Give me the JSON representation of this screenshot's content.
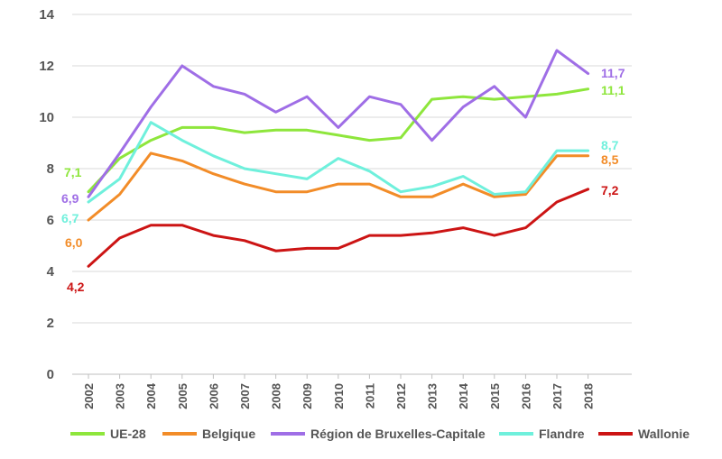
{
  "chart_data": {
    "type": "line",
    "categories": [
      "2002",
      "2003",
      "2004",
      "2005",
      "2006",
      "2007",
      "2008",
      "2009",
      "2010",
      "2011",
      "2012",
      "2013",
      "2014",
      "2015",
      "2016",
      "2017",
      "2018"
    ],
    "ylim": [
      0,
      14
    ],
    "yticks": [
      "0",
      "2",
      "4",
      "6",
      "8",
      "10",
      "12",
      "14"
    ],
    "grid": true,
    "legend_position": "bottom",
    "series": [
      {
        "name": "UE-28",
        "color": "#8ee63c",
        "values": [
          7.1,
          8.4,
          9.1,
          9.6,
          9.6,
          9.4,
          9.5,
          9.5,
          9.3,
          9.1,
          9.2,
          10.7,
          10.8,
          10.7,
          10.8,
          10.9,
          11.1
        ],
        "start_label": "7,1",
        "end_label": "11,1"
      },
      {
        "name": "Belgique",
        "color": "#f28c28",
        "values": [
          6.0,
          7.0,
          8.6,
          8.3,
          7.8,
          7.4,
          7.1,
          7.1,
          7.4,
          7.4,
          6.9,
          6.9,
          7.4,
          6.9,
          7.0,
          8.5,
          8.5
        ],
        "start_label": "6,0",
        "end_label": "8,5"
      },
      {
        "name": "Région de Bruxelles-Capitale",
        "color": "#9f6ee6",
        "values": [
          6.9,
          8.6,
          10.4,
          12.0,
          11.2,
          10.9,
          10.2,
          10.8,
          9.6,
          10.8,
          10.5,
          9.1,
          10.4,
          11.2,
          10.0,
          12.6,
          11.7
        ],
        "start_label": "6,9",
        "end_label": "11,7"
      },
      {
        "name": "Flandre",
        "color": "#6ff0dc",
        "values": [
          6.7,
          7.6,
          9.8,
          9.1,
          8.5,
          8.0,
          7.8,
          7.6,
          8.4,
          7.9,
          7.1,
          7.3,
          7.7,
          7.0,
          7.1,
          8.7,
          8.7
        ],
        "start_label": "6,7",
        "end_label": "8,7"
      },
      {
        "name": "Wallonie",
        "color": "#cc1414",
        "values": [
          4.2,
          5.3,
          5.8,
          5.8,
          5.4,
          5.2,
          4.8,
          4.9,
          4.9,
          5.4,
          5.4,
          5.5,
          5.7,
          5.4,
          5.7,
          6.7,
          7.2
        ],
        "start_label": "4,2",
        "end_label": "7,2"
      }
    ]
  }
}
